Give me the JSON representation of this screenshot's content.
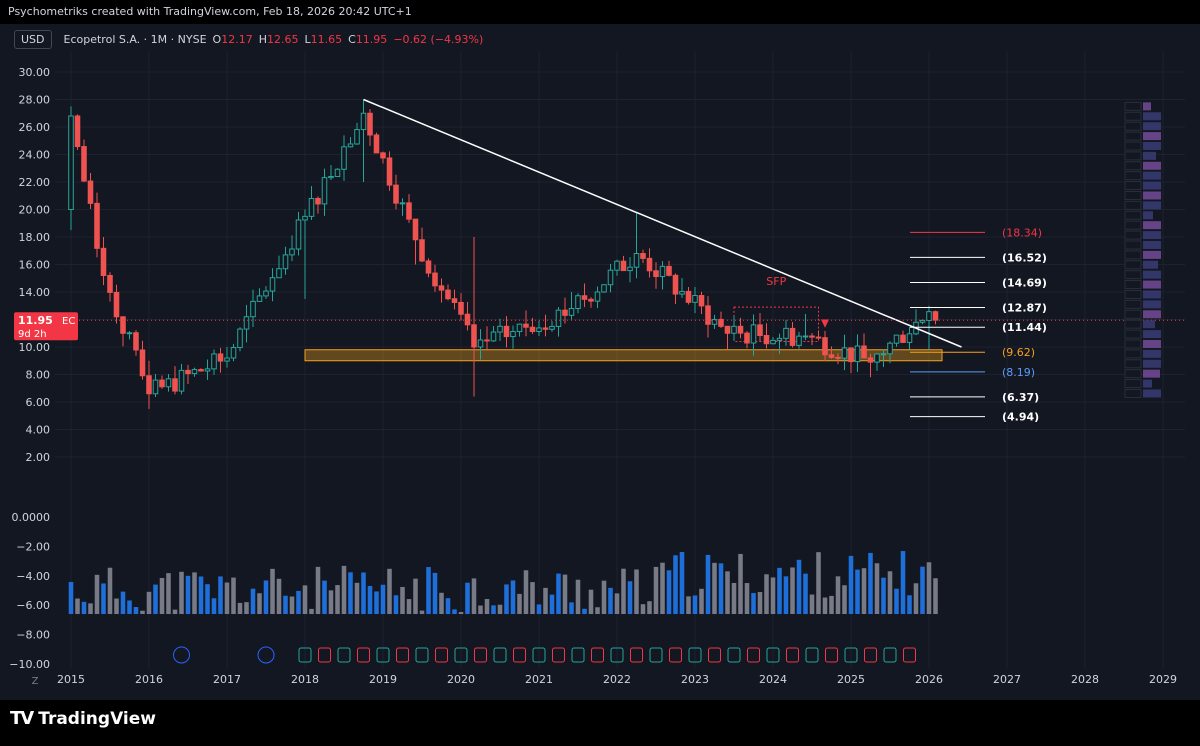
{
  "header": {
    "caption": "Psychometriks created with TradingView.com, Feb 18, 2026 20:42 UTC+1"
  },
  "legend": {
    "currency_button": "USD",
    "symbol": "Ecopetrol S.A. · 1M · NYSE",
    "open_key": "O",
    "open": "12.17",
    "high_key": "H",
    "high": "12.65",
    "low_key": "L",
    "low": "11.65",
    "close_key": "C",
    "close": "11.95",
    "change": "−0.62 (−4.93%)"
  },
  "price_tag": {
    "price": "11.95",
    "ticker": "EC",
    "countdown": "9d 2h"
  },
  "annotation": {
    "sfp": "SFP"
  },
  "footer": {
    "brand": "TradingView",
    "zoom_button": "Z"
  },
  "colors": {
    "background": "#131722",
    "up": "#26a69a",
    "down": "#ef5350",
    "trendline": "#ffffff",
    "zone": "#f7a21b",
    "volume_blue": "#1e6fd9",
    "volume_gray": "#787b86"
  },
  "chart_data": [
    {
      "type": "candlestick",
      "title": "Ecopetrol S.A. · 1M · NYSE",
      "x_axis_labels": [
        "2015",
        "2016",
        "2017",
        "2018",
        "2019",
        "2020",
        "2021",
        "2022",
        "2023",
        "2024",
        "2025",
        "2026",
        "2027",
        "2028",
        "2029"
      ],
      "y_axis_labels": [
        "30.00",
        "28.00",
        "26.00",
        "24.00",
        "22.00",
        "20.00",
        "18.00",
        "16.00",
        "14.00",
        "12.00",
        "10.00",
        "8.00",
        "6.00",
        "4.00",
        "2.00"
      ],
      "ylim": [
        2,
        30
      ],
      "ohlc_approx": [
        {
          "x": "2015-01",
          "o": 22.0,
          "h": 27.5,
          "l": 18.5,
          "c": 26.8
        },
        {
          "x": "2015-06",
          "o": 17.0,
          "h": 18.0,
          "l": 14.5,
          "c": 15.2
        },
        {
          "x": "2016-01",
          "o": 8.5,
          "h": 9.0,
          "l": 5.5,
          "c": 6.6
        },
        {
          "x": "2017-01",
          "o": 9.0,
          "h": 10.0,
          "l": 8.5,
          "c": 9.2
        },
        {
          "x": "2018-01",
          "o": 14.0,
          "h": 20.0,
          "l": 13.5,
          "c": 19.5
        },
        {
          "x": "2018-10",
          "o": 24.0,
          "h": 28.0,
          "l": 22.0,
          "c": 27.0
        },
        {
          "x": "2019-06",
          "o": 17.0,
          "h": 19.0,
          "l": 16.0,
          "c": 17.8
        },
        {
          "x": "2020-03",
          "o": 17.0,
          "h": 18.0,
          "l": 6.4,
          "c": 10.0
        },
        {
          "x": "2021-06",
          "o": 13.0,
          "h": 14.0,
          "l": 12.0,
          "c": 12.8
        },
        {
          "x": "2022-04",
          "o": 17.5,
          "h": 19.8,
          "l": 15.0,
          "c": 16.8
        },
        {
          "x": "2023-06",
          "o": 10.5,
          "h": 11.5,
          "l": 9.8,
          "c": 11.0
        },
        {
          "x": "2024-06",
          "o": 11.8,
          "h": 12.4,
          "l": 10.5,
          "c": 10.8
        },
        {
          "x": "2025-04",
          "o": 8.5,
          "h": 9.5,
          "l": 7.8,
          "c": 8.9
        },
        {
          "x": "2026-01",
          "o": 10.0,
          "h": 13.0,
          "l": 9.8,
          "c": 12.57
        },
        {
          "x": "2026-02",
          "o": 12.17,
          "h": 12.65,
          "l": 11.65,
          "c": 11.95
        }
      ],
      "trendline": {
        "from": {
          "x": "2018-10",
          "y": 28.0
        },
        "to": {
          "x": "2026-06",
          "y": 10.0
        }
      },
      "support_zone": {
        "from": "2018-01",
        "to": "2026-03",
        "y_low": 9.0,
        "y_high": 9.8
      },
      "sfp_box": {
        "from": "2023-07",
        "to": "2024-08",
        "y_low": 10.4,
        "y_high": 12.9
      },
      "fib_levels": [
        {
          "label": "(18.34)",
          "value": 18.34,
          "color": "#f23645"
        },
        {
          "label": "(16.52)",
          "value": 16.52,
          "color": "#ffffff"
        },
        {
          "label": "(14.69)",
          "value": 14.69,
          "color": "#ffffff"
        },
        {
          "label": "(12.87)",
          "value": 12.87,
          "color": "#ffffff"
        },
        {
          "label": "(11.44)",
          "value": 11.44,
          "color": "#ffffff"
        },
        {
          "label": "(9.62)",
          "value": 9.62,
          "color": "#f7a21b"
        },
        {
          "label": "(8.19)",
          "value": 8.19,
          "color": "#5b9cf6"
        },
        {
          "label": "(6.37)",
          "value": 6.37,
          "color": "#ffffff"
        },
        {
          "label": "(4.94)",
          "value": 4.94,
          "color": "#ffffff"
        }
      ],
      "last_price": 11.95
    },
    {
      "type": "bar",
      "title": "",
      "y_axis_labels": [
        "0.0000",
        "−2.00",
        "−4.00",
        "−6.00",
        "−8.00",
        "−10.00"
      ],
      "ylim": [
        -10,
        0
      ]
    }
  ]
}
